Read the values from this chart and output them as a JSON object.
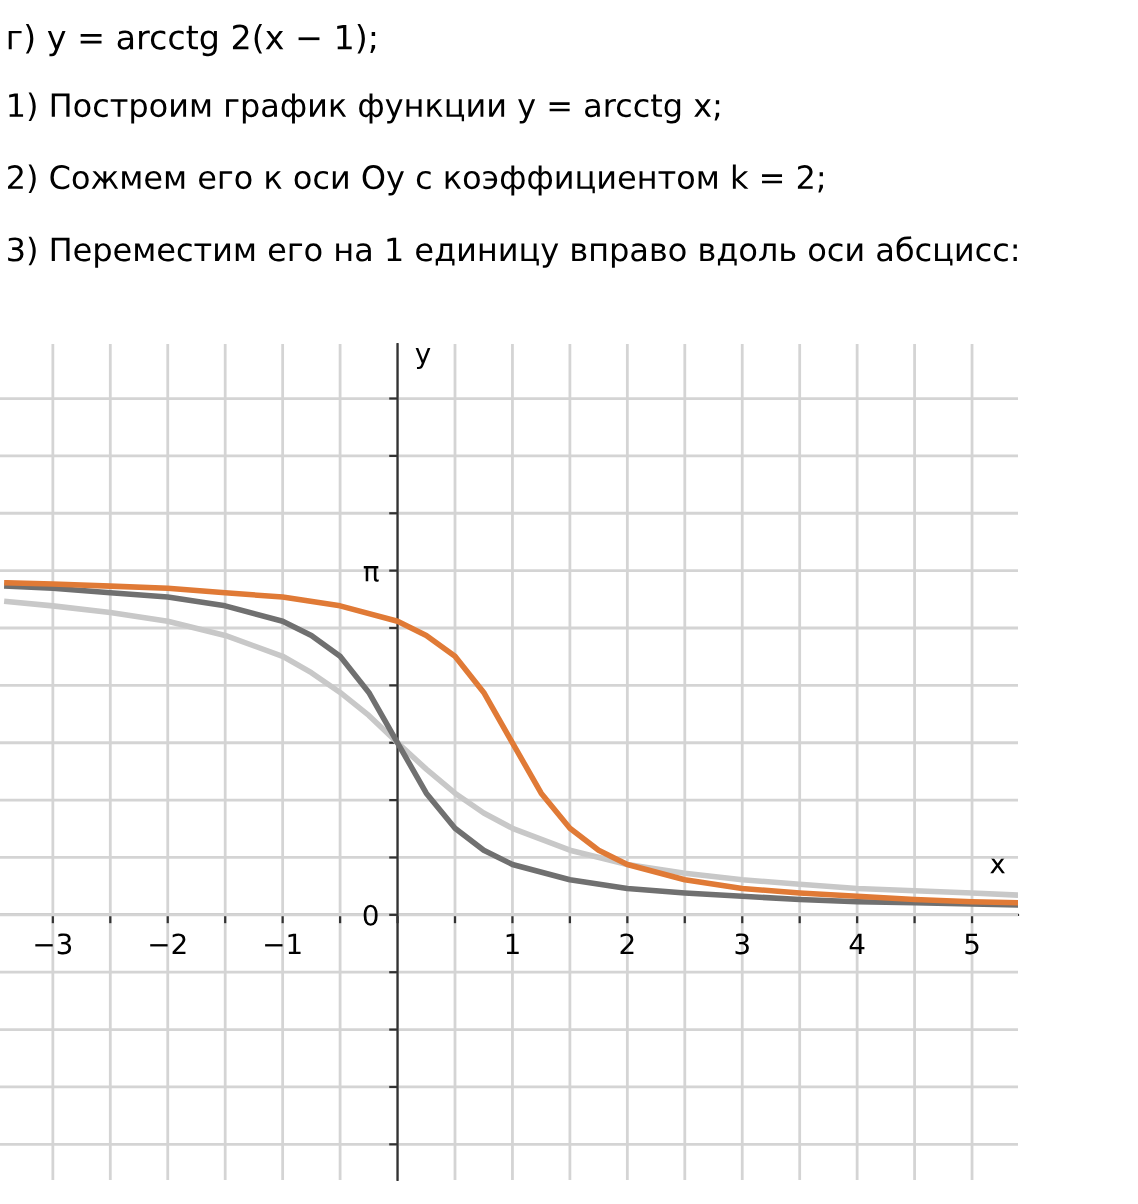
{
  "chart_data": {
    "type": "line",
    "title": "г) y = arcctg 2(x − 1);",
    "annotations": [
      "1) Построим график функции y = arcctg x;",
      "2) Сожмем его к оси Oy с коэффициентом k = 2;",
      "3) Переместим его на 1 единицу вправо вдоль оси абсцисс:"
    ],
    "xlabel": "x",
    "ylabel": "y",
    "series": [
      {
        "color": "#c8c8c8",
        "x": [
          -3.4,
          -3,
          -2.5,
          -2,
          -1.5,
          -1,
          -0.75,
          -0.5,
          -0.25,
          0,
          0.25,
          0.5,
          0.75,
          1,
          1.5,
          2,
          2.5,
          3,
          3.5,
          4,
          4.5,
          5,
          5.4
        ],
        "values": [
          2.86,
          2.82,
          2.76,
          2.68,
          2.55,
          2.36,
          2.21,
          2.03,
          1.82,
          1.57,
          1.33,
          1.11,
          0.93,
          0.79,
          0.59,
          0.46,
          0.38,
          0.32,
          0.28,
          0.24,
          0.22,
          0.2,
          0.18
        ]
      },
      {
        "color": "#707070",
        "x": [
          -3.4,
          -3,
          -2.5,
          -2,
          -1.5,
          -1,
          -0.75,
          -0.5,
          -0.25,
          0,
          0.25,
          0.5,
          0.75,
          1,
          1.5,
          2,
          2.5,
          3,
          3.5,
          4,
          4.5,
          5,
          5.4
        ],
        "values": [
          3.0,
          2.98,
          2.94,
          2.9,
          2.82,
          2.68,
          2.55,
          2.36,
          2.03,
          1.57,
          1.11,
          0.79,
          0.59,
          0.46,
          0.32,
          0.24,
          0.2,
          0.17,
          0.14,
          0.12,
          0.11,
          0.1,
          0.09
        ]
      },
      {
        "color": "#e07a36",
        "x": [
          -3.4,
          -3,
          -2.5,
          -2,
          -1.5,
          -1,
          -0.5,
          0,
          0.25,
          0.5,
          0.75,
          1,
          1.25,
          1.5,
          1.75,
          2,
          2.5,
          3,
          3.5,
          4,
          4.5,
          5,
          5.4
        ],
        "values": [
          3.03,
          3.02,
          3.0,
          2.98,
          2.94,
          2.9,
          2.82,
          2.68,
          2.55,
          2.36,
          2.03,
          1.57,
          1.11,
          0.79,
          0.59,
          0.46,
          0.32,
          0.24,
          0.2,
          0.17,
          0.14,
          0.12,
          0.11
        ]
      }
    ],
    "xlim": [
      -3.46,
      5.4
    ],
    "ylim": [
      -2.42,
      5.21
    ],
    "xticks": [
      {
        "value": -3,
        "label": "−3"
      },
      {
        "value": -2.5,
        "label": null
      },
      {
        "value": -2,
        "label": "−2"
      },
      {
        "value": -1.5,
        "label": null
      },
      {
        "value": -1,
        "label": "−1"
      },
      {
        "value": -0.5,
        "label": null
      },
      {
        "value": 0,
        "label": null
      },
      {
        "value": 0.5,
        "label": null
      },
      1,
      {
        "value": 1.5,
        "label": null
      },
      2,
      {
        "value": 2.5,
        "label": null
      },
      3,
      {
        "value": 3.5,
        "label": null
      },
      4,
      {
        "value": 4.5,
        "label": null
      },
      5
    ],
    "yticks": [
      {
        "value": -2.0944,
        "label": null
      },
      {
        "value": -1.5708,
        "label": null
      },
      {
        "value": -1.0472,
        "label": null
      },
      {
        "value": -0.5236,
        "label": null
      },
      {
        "value": 0,
        "label": "0"
      },
      {
        "value": 0.5236,
        "label": null
      },
      {
        "value": 1.0472,
        "label": null
      },
      {
        "value": 1.5708,
        "label": null
      },
      {
        "value": 2.0944,
        "label": null
      },
      {
        "value": 2.618,
        "label": null
      },
      {
        "value": 3.1416,
        "label": "π"
      },
      {
        "value": 3.6652,
        "label": null
      },
      {
        "value": 4.1888,
        "label": null
      },
      {
        "value": 4.7124,
        "label": null
      }
    ],
    "grid": true,
    "marker": "none",
    "line_style": "solid",
    "legend": false
  }
}
